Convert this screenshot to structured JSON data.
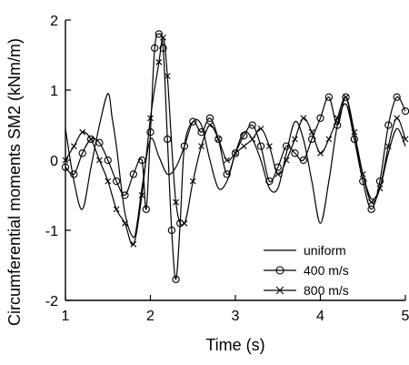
{
  "chart_data": {
    "type": "line",
    "xlabel": "Time (s)",
    "ylabel": "Circumferential moments SM2 (kNm/m)",
    "xlim": [
      1,
      5
    ],
    "ylim": [
      -2,
      2
    ],
    "xticks": [
      "1",
      "2",
      "3",
      "4",
      "5"
    ],
    "yticks": [
      "-2",
      "-1",
      "0",
      "1",
      "2"
    ],
    "legend_position": "bottom-right",
    "grid": false,
    "series": [
      {
        "name": "uniform",
        "marker": "none",
        "x": [
          1.0,
          1.1,
          1.2,
          1.3,
          1.4,
          1.5,
          1.55,
          1.6,
          1.7,
          1.8,
          1.85,
          1.9,
          2.0,
          2.1,
          2.2,
          2.3,
          2.4,
          2.5,
          2.6,
          2.7,
          2.8,
          2.9,
          3.0,
          3.1,
          3.2,
          3.3,
          3.4,
          3.5,
          3.6,
          3.7,
          3.8,
          3.9,
          4.0,
          4.1,
          4.2,
          4.3,
          4.4,
          4.5,
          4.6,
          4.7,
          4.8,
          4.9,
          5.0
        ],
        "y": [
          0.45,
          -0.3,
          -0.7,
          -0.1,
          0.5,
          0.95,
          0.6,
          0.2,
          -0.75,
          -1.1,
          -0.85,
          -0.4,
          0.3,
          0.05,
          -0.2,
          -0.1,
          0.2,
          0.55,
          0.5,
          0.0,
          -0.4,
          -0.3,
          0.1,
          0.4,
          0.3,
          0.0,
          -0.4,
          -0.4,
          0.1,
          0.55,
          0.3,
          -0.3,
          -0.9,
          -0.3,
          0.5,
          0.8,
          0.3,
          -0.2,
          -0.55,
          -0.4,
          0.1,
          0.45,
          0.2
        ]
      },
      {
        "name": "400 m/s",
        "marker": "circle",
        "x": [
          1.0,
          1.1,
          1.2,
          1.3,
          1.4,
          1.5,
          1.6,
          1.7,
          1.8,
          1.9,
          1.95,
          2.0,
          2.05,
          2.1,
          2.15,
          2.2,
          2.25,
          2.3,
          2.35,
          2.4,
          2.5,
          2.6,
          2.7,
          2.8,
          2.9,
          3.0,
          3.1,
          3.2,
          3.3,
          3.4,
          3.5,
          3.6,
          3.7,
          3.8,
          3.9,
          4.0,
          4.1,
          4.2,
          4.3,
          4.4,
          4.5,
          4.6,
          4.7,
          4.8,
          4.9,
          5.0
        ],
        "y": [
          -0.1,
          -0.2,
          0.1,
          0.3,
          0.25,
          0.0,
          -0.3,
          -0.5,
          -0.2,
          0.0,
          -0.7,
          0.4,
          1.6,
          1.8,
          1.6,
          0.3,
          -1.0,
          -1.7,
          -0.9,
          0.2,
          0.55,
          0.4,
          0.6,
          0.3,
          -0.2,
          0.1,
          0.35,
          0.5,
          0.2,
          -0.3,
          -0.1,
          0.2,
          0.1,
          0.0,
          0.3,
          0.6,
          0.9,
          0.5,
          0.9,
          0.3,
          -0.3,
          -0.7,
          -0.3,
          0.5,
          0.9,
          0.7
        ]
      },
      {
        "name": "800 m/s",
        "marker": "x",
        "x": [
          1.0,
          1.1,
          1.2,
          1.3,
          1.4,
          1.5,
          1.6,
          1.7,
          1.8,
          1.9,
          2.0,
          2.1,
          2.15,
          2.2,
          2.3,
          2.4,
          2.5,
          2.6,
          2.7,
          2.8,
          2.9,
          3.0,
          3.1,
          3.2,
          3.3,
          3.4,
          3.5,
          3.6,
          3.7,
          3.8,
          3.9,
          4.0,
          4.1,
          4.2,
          4.3,
          4.4,
          4.5,
          4.6,
          4.7,
          4.8,
          4.9,
          5.0
        ],
        "y": [
          0.0,
          0.2,
          0.4,
          0.3,
          0.0,
          -0.3,
          -0.7,
          -0.9,
          -1.2,
          -0.5,
          0.6,
          1.4,
          1.75,
          1.2,
          -0.6,
          -0.9,
          -0.3,
          0.2,
          0.5,
          0.3,
          0.0,
          0.1,
          0.2,
          0.3,
          0.45,
          0.2,
          -0.2,
          0.0,
          0.3,
          0.6,
          0.4,
          0.1,
          0.3,
          0.6,
          0.9,
          0.4,
          -0.2,
          -0.6,
          -0.4,
          0.2,
          0.6,
          0.3
        ]
      }
    ]
  }
}
